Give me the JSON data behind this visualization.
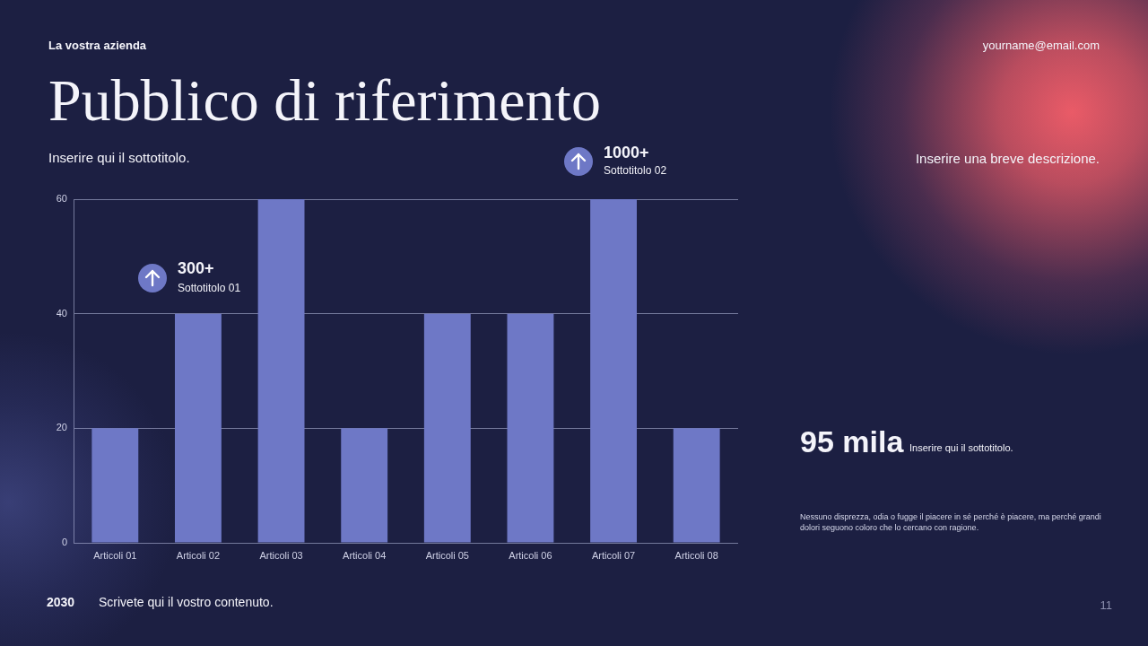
{
  "chart_data": {
    "type": "bar",
    "title": "Pubblico di riferimento",
    "subtitle": "Inserire qui il sottotitolo.",
    "categories": [
      "Articoli 01",
      "Articoli 02",
      "Articoli 03",
      "Articoli 04",
      "Articoli 05",
      "Articoli 06",
      "Articoli 07",
      "Articoli 08"
    ],
    "values": [
      20,
      40,
      60,
      20,
      40,
      40,
      60,
      20
    ],
    "color": "#6e78c6",
    "ylim": [
      0,
      60
    ],
    "yticks": [
      0,
      20,
      40,
      60
    ],
    "grid": "y",
    "annotations": [
      "La vostra azienda",
      "yourname@email.com",
      "300+",
      "Sottotitolo 01",
      "1000+",
      "Sottotitolo 02",
      "Inserire una breve descrizione.",
      "95 mila",
      "Inserire qui il sottotitolo.",
      "Nessuno disprezza, odia o fugge il piacere in sé perché è piacere, ma perché grandi dolori seguono coloro che lo cercano con ragione.",
      "2030",
      "Scrivete qui il vostro contenuto.",
      "11"
    ]
  }
}
